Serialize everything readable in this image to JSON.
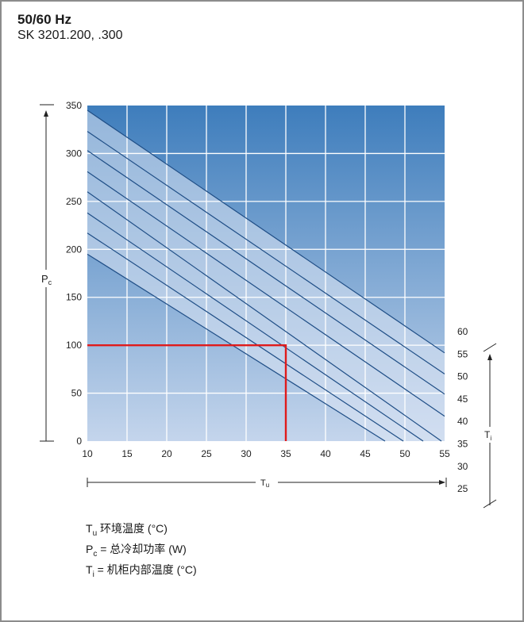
{
  "header": {
    "title": "50/60 Hz",
    "subtitle": "SK 3201.200, .300"
  },
  "legend": [
    {
      "sym": "T",
      "sub": "u",
      "text": " 环境温度 (°C)"
    },
    {
      "sym": "P",
      "sub": "c",
      "text": " = 总冷却功率 (W)"
    },
    {
      "sym": "T",
      "sub": "i",
      "text": "  = 机柜内部温度 (°C)"
    }
  ],
  "chart_data": {
    "type": "line",
    "title": "50/60 Hz",
    "subtitle": "SK 3201.200, .300",
    "xlabel": "Tu",
    "ylabel": "Pc",
    "right_axis_label": "Ti",
    "xlim": [
      10,
      55
    ],
    "ylim": [
      0,
      350
    ],
    "x_ticks": [
      10,
      15,
      20,
      25,
      30,
      35,
      40,
      45,
      50,
      55
    ],
    "y_ticks": [
      0,
      50,
      100,
      150,
      200,
      250,
      300,
      350
    ],
    "ti_ticks": [
      25,
      30,
      35,
      40,
      45,
      50,
      55,
      60
    ],
    "grid": true,
    "series": [
      {
        "name": "25",
        "x": [
          10,
          47.5
        ],
        "y": [
          195,
          0
        ]
      },
      {
        "name": "30",
        "x": [
          10,
          49.8
        ],
        "y": [
          217,
          0
        ]
      },
      {
        "name": "35",
        "x": [
          10,
          52.3
        ],
        "y": [
          238,
          0
        ]
      },
      {
        "name": "40",
        "x": [
          10,
          54.6
        ],
        "y": [
          260,
          0
        ]
      },
      {
        "name": "45",
        "x": [
          10,
          55
        ],
        "y": [
          281,
          26
        ]
      },
      {
        "name": "50",
        "x": [
          10,
          55
        ],
        "y": [
          303,
          49
        ]
      },
      {
        "name": "55",
        "x": [
          10,
          55
        ],
        "y": [
          323,
          70
        ]
      },
      {
        "name": "60",
        "x": [
          10,
          55
        ],
        "y": [
          345,
          92
        ]
      }
    ],
    "reading_example": {
      "x": 35,
      "y": 100
    }
  }
}
